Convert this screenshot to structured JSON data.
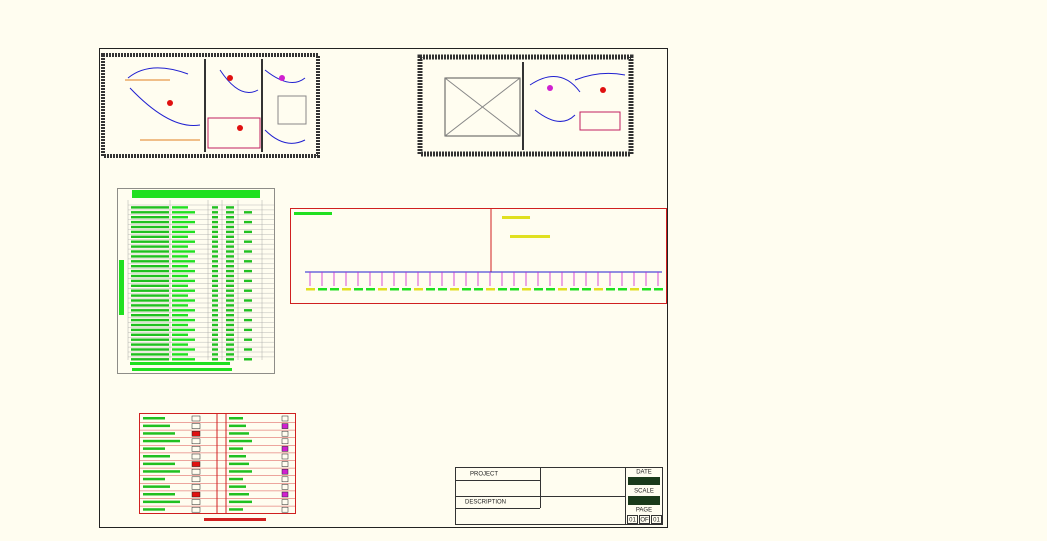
{
  "title_block": {
    "project_label": "PROJECT",
    "description_label": "DESCRIPTION",
    "date_label": "DATE",
    "scale_label": "SCALE",
    "page_label": "PAGE",
    "page_number": "01",
    "page_of": "OF",
    "page_total": "01"
  }
}
